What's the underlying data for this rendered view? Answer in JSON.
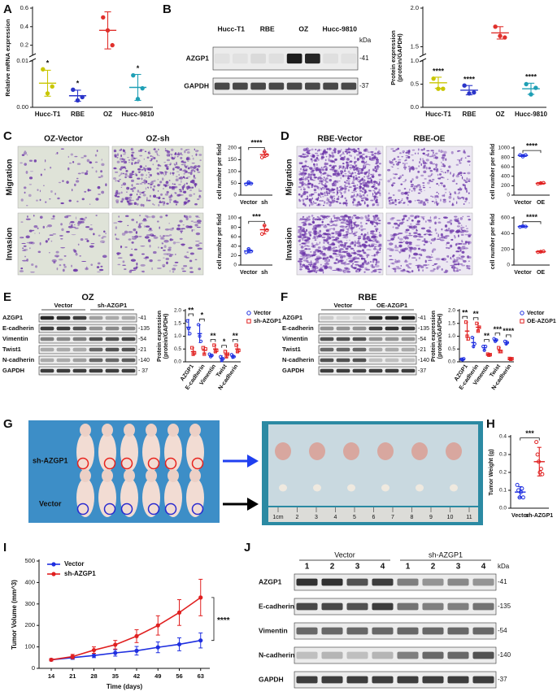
{
  "panel_labels": [
    "A",
    "B",
    "C",
    "D",
    "E",
    "F",
    "G",
    "H",
    "I",
    "J"
  ],
  "chart_data": [
    {
      "type": "dot",
      "ylabel": "Relative mRNA expression",
      "categories": [
        "Hucc-T1",
        "RBE",
        "OZ",
        "Hucc-9810"
      ],
      "series": [
        {
          "colors": [
            "#c9c600",
            "#2b35c9",
            "#e0302c",
            "#1e9fb5"
          ],
          "marker": "circle",
          "values": [
            0.0052,
            0.0025,
            0.36,
            0.0043
          ],
          "errors": [
            0.0028,
            0.0012,
            0.2,
            0.0028
          ],
          "points": [
            [
              0.0082,
              0.003,
              0.0045
            ],
            [
              0.0038,
              0.0015,
              0.0022
            ],
            [
              0.5,
              0.36,
              0.2
            ],
            [
              0.0069,
              0.0018,
              0.0041
            ]
          ]
        }
      ],
      "ylim": [
        0,
        0.6
      ],
      "axis_break": [
        0.01,
        0.1
      ],
      "yticks": [
        {
          "value": 0,
          "label": "0.00"
        },
        0.01,
        0.2,
        0.4,
        0.6
      ],
      "annotations": [
        "*",
        "*",
        null,
        "*"
      ]
    },
    {
      "type": "dot",
      "ylabel": [
        "Protein expression",
        "(protein/GAPDH)"
      ],
      "categories": [
        "Hucc-T1",
        "RBE",
        "OZ",
        "Hucc-9810"
      ],
      "series": [
        {
          "colors": [
            "#c9c600",
            "#2b35c9",
            "#e0302c",
            "#1e9fb5"
          ],
          "marker": "circle",
          "values": [
            0.53,
            0.37,
            1.68,
            0.4
          ],
          "errors": [
            0.12,
            0.1,
            0.08,
            0.12
          ],
          "points": [
            [
              0.62,
              0.4,
              0.4
            ],
            [
              0.47,
              0.3,
              0.32
            ],
            [
              1.76,
              1.64,
              1.62
            ],
            [
              0.5,
              0.28,
              0.42
            ]
          ]
        }
      ],
      "ylim": [
        0,
        2
      ],
      "axis_break": [
        1,
        1.4
      ],
      "yticks": [
        {
          "value": 0,
          "label": "0.0"
        },
        0.5,
        {
          "value": 1,
          "label": "1.0"
        },
        1.5,
        {
          "value": 2,
          "label": "2.0"
        }
      ],
      "annotations": [
        "****",
        "****",
        null,
        "****"
      ]
    },
    {
      "type": "dot",
      "ylabel": "cell number per field",
      "categories": [
        "Vector",
        "sh"
      ],
      "series": [
        {
          "colors": [
            "#1f2fe0",
            "#e02020"
          ],
          "marker": "circle-open",
          "values": [
            50,
            172
          ],
          "errors": [
            5,
            12
          ],
          "points": [
            [
              46,
              55,
              49
            ],
            [
              160,
              185,
              170
            ]
          ]
        }
      ],
      "ylim": [
        0,
        200
      ],
      "yticks": [
        0,
        50,
        100,
        150,
        200
      ],
      "annotation": "****"
    },
    {
      "type": "dot",
      "ylabel": "cell number per field",
      "categories": [
        "Vector",
        "sh"
      ],
      "series": [
        {
          "colors": [
            "#1f2fe0",
            "#e02020"
          ],
          "marker": "circle-open",
          "values": [
            30,
            75
          ],
          "errors": [
            4,
            9
          ],
          "points": [
            [
              27,
              34,
              29
            ],
            [
              66,
              84,
              74
            ]
          ]
        }
      ],
      "ylim": [
        0,
        100
      ],
      "yticks": [
        0,
        20,
        40,
        60,
        80,
        100
      ],
      "annotation": "***"
    },
    {
      "type": "dot",
      "ylabel": "cell number per field",
      "categories": [
        "Vector",
        "OE"
      ],
      "series": [
        {
          "colors": [
            "#1f2fe0",
            "#e02020"
          ],
          "marker": "circle-open",
          "values": [
            840,
            250
          ],
          "errors": [
            20,
            15
          ],
          "points": [
            [
              850,
              820,
              850
            ],
            [
              240,
              255,
              260
            ]
          ]
        }
      ],
      "ylim": [
        0,
        1000
      ],
      "yticks": [
        0,
        200,
        400,
        600,
        800,
        1000
      ],
      "annotation": "****"
    },
    {
      "type": "dot",
      "ylabel": "cell number per field",
      "categories": [
        "Vector",
        "OE"
      ],
      "series": [
        {
          "colors": [
            "#1f2fe0",
            "#e02020"
          ],
          "marker": "circle-open",
          "values": [
            490,
            170
          ],
          "errors": [
            10,
            8
          ],
          "points": [
            [
              485,
              495,
              490
            ],
            [
              165,
              170,
              175
            ]
          ]
        }
      ],
      "ylim": [
        0,
        600
      ],
      "yticks": [
        0,
        200,
        400,
        600
      ],
      "annotation": "****"
    },
    {
      "type": "dot",
      "ylabel": [
        "Protein expression",
        "(protein/GAPDH)"
      ],
      "categories": [
        "AZGP1",
        "E-cadherin",
        "Vimentin",
        "Twist",
        "N-cadherin"
      ],
      "series": [
        {
          "name": "Vector",
          "color": "#1f2fe0",
          "marker": "circle-open",
          "values": [
            1.35,
            1.1,
            0.25,
            0.13,
            0.22
          ],
          "errors": [
            0.3,
            0.35,
            0.05,
            0.1,
            0.06
          ],
          "points": [
            [
              1.6,
              1.3,
              1.1
            ],
            [
              1.45,
              1.0,
              0.8
            ],
            [
              0.3,
              0.2,
              0.25
            ],
            [
              0.2,
              0.05,
              0.12
            ],
            [
              0.28,
              0.18,
              0.2
            ]
          ]
        },
        {
          "name": "sh-AZGP1",
          "color": "#e02020",
          "marker": "square-open",
          "values": [
            0.4,
            0.45,
            0.5,
            0.3,
            0.5
          ],
          "errors": [
            0.15,
            0.15,
            0.15,
            0.12,
            0.15
          ],
          "points": [
            [
              0.55,
              0.3,
              0.35
            ],
            [
              0.55,
              0.3,
              0.5
            ],
            [
              0.65,
              0.4,
              0.45
            ],
            [
              0.4,
              0.2,
              0.3
            ],
            [
              0.65,
              0.4,
              0.45
            ]
          ]
        }
      ],
      "ylim": [
        0,
        2
      ],
      "yticks": [
        {
          "value": 0,
          "label": "0.0"
        },
        0.5,
        {
          "value": 1,
          "label": "1.0"
        },
        1.5,
        {
          "value": 2,
          "label": "2.0"
        }
      ],
      "annotations": [
        "**",
        "*",
        "**",
        "*",
        "**"
      ],
      "legend": "right"
    },
    {
      "type": "dot",
      "ylabel": [
        "Protein expression",
        "(protein/GAPDH)"
      ],
      "categories": [
        "AZGP1",
        "E-cadherin",
        "Vimentin",
        "Twist",
        "N-cadherin"
      ],
      "series": [
        {
          "name": "Vector",
          "color": "#1f2fe0",
          "marker": "circle-open",
          "values": [
            0.1,
            0.75,
            0.55,
            0.85,
            0.75
          ],
          "errors": [
            0.05,
            0.2,
            0.1,
            0.05,
            0.08
          ],
          "points": [
            [
              0.1,
              0.08,
              0.12
            ],
            [
              0.95,
              0.6,
              0.7
            ],
            [
              0.6,
              0.45,
              0.6
            ],
            [
              0.9,
              0.8,
              0.85
            ],
            [
              0.8,
              0.7,
              0.75
            ]
          ]
        },
        {
          "name": "OE-AZGP1",
          "color": "#e02020",
          "marker": "square-open",
          "values": [
            1.2,
            1.35,
            0.28,
            0.45,
            0.12
          ],
          "errors": [
            0.35,
            0.15,
            0.03,
            0.1,
            0.02
          ],
          "points": [
            [
              1.55,
              1.0,
              0.9
            ],
            [
              1.5,
              1.2,
              1.35
            ],
            [
              0.3,
              0.26,
              0.28
            ],
            [
              0.55,
              0.4,
              0.4
            ],
            [
              0.13,
              0.1,
              0.12
            ]
          ]
        }
      ],
      "ylim": [
        0,
        2
      ],
      "yticks": [
        {
          "value": 0,
          "label": "0.0"
        },
        0.5,
        {
          "value": 1,
          "label": "1.0"
        },
        1.5,
        {
          "value": 2,
          "label": "2.0"
        }
      ],
      "annotations": [
        "**",
        "**",
        "**",
        "***",
        "****"
      ],
      "legend": "right"
    },
    {
      "type": "dot",
      "ylabel": "Tumor Weight (g)",
      "categories": [
        "Vector",
        "sh-AZGP1"
      ],
      "series": [
        {
          "colors": [
            "#1f2fe0",
            "#e02020"
          ],
          "marker": "circle-open",
          "values": [
            0.09,
            0.26
          ],
          "errors": [
            0.03,
            0.08
          ],
          "points": [
            [
              0.13,
              0.1,
              0.06,
              0.09,
              0.11,
              0.06
            ],
            [
              0.37,
              0.3,
              0.26,
              0.2,
              0.22,
              0.19
            ]
          ]
        }
      ],
      "ylim": [
        0,
        0.4
      ],
      "yticks": [
        {
          "value": 0,
          "label": "0.0"
        },
        0.1,
        0.2,
        0.3,
        0.4
      ],
      "annotation": "***"
    },
    {
      "type": "line",
      "ylabel": "Tumor Volume (mm^3)",
      "xlabel": "Time (days)",
      "x": [
        14,
        21,
        28,
        35,
        42,
        49,
        56,
        63
      ],
      "series": [
        {
          "name": "Vector",
          "color": "#1f2fe0",
          "values": [
            40,
            50,
            60,
            72,
            82,
            98,
            112,
            130
          ],
          "errors": [
            5,
            8,
            10,
            15,
            20,
            25,
            30,
            35
          ]
        },
        {
          "name": "sh-AZGP1",
          "color": "#e02020",
          "values": [
            40,
            55,
            85,
            110,
            150,
            200,
            260,
            330
          ],
          "errors": [
            5,
            10,
            15,
            20,
            30,
            45,
            60,
            85
          ]
        }
      ],
      "xlim": [
        10,
        66
      ],
      "xticks": [
        14,
        21,
        28,
        35,
        42,
        49,
        56,
        63
      ],
      "ylim": [
        0,
        500
      ],
      "yticks": [
        0,
        100,
        200,
        300,
        400,
        500
      ],
      "annotation": "****",
      "legend": "top-left"
    }
  ],
  "blot_B": {
    "lanes": [
      "Hucc-T1",
      "RBE",
      "OZ",
      "Hucc-9810"
    ],
    "proteins": [
      "AZGP1",
      "GAPDH"
    ],
    "markers": [
      "-41",
      "-37"
    ],
    "unit": "kDa"
  },
  "blot_E": {
    "cell": "OZ",
    "groups": [
      "Vector",
      "sh-AZGP1"
    ],
    "proteins": [
      "AZGP1",
      "E-cadherin",
      "Vimentin",
      "Twist1",
      "N-cadherin",
      "GAPDH"
    ],
    "markers": [
      "-41",
      "-135",
      "-54",
      "-21",
      "-140",
      "- 37"
    ]
  },
  "blot_F": {
    "cell": "RBE",
    "groups": [
      "Vector",
      "OE-AZGP1"
    ],
    "proteins": [
      "AZGP1",
      "E-cadherin",
      "Vimentin",
      "Twist1",
      "N-cadherin",
      "GAPDH"
    ],
    "markers": [
      "-41",
      "-135",
      "-54",
      "-21",
      "-140",
      "-37"
    ]
  },
  "blot_J": {
    "groups": [
      "Vector",
      "sh-AZGP1"
    ],
    "lanes": [
      "1",
      "2",
      "3",
      "4",
      "1",
      "2",
      "3",
      "4"
    ],
    "proteins": [
      "AZGP1",
      "E-cadherin",
      "Vimentin",
      "N-cadherin",
      "GAPDH"
    ],
    "markers": [
      "-41",
      "-135",
      "-54",
      "-140",
      "-37"
    ],
    "unit": "kDa"
  },
  "images_C": {
    "columns": [
      "OZ-Vector",
      "OZ-sh"
    ],
    "rows": [
      "Migration",
      "Invasion"
    ]
  },
  "images_D": {
    "columns": [
      "RBE-Vector",
      "RBE-OE"
    ],
    "rows": [
      "Migration",
      "Invasion"
    ]
  },
  "photo_G": {
    "groups": [
      "sh-AZGP1",
      "Vector"
    ],
    "ruler": [
      "1cm",
      "2",
      "3",
      "4",
      "5",
      "6",
      "7",
      "8",
      "9",
      "10",
      "11"
    ]
  }
}
